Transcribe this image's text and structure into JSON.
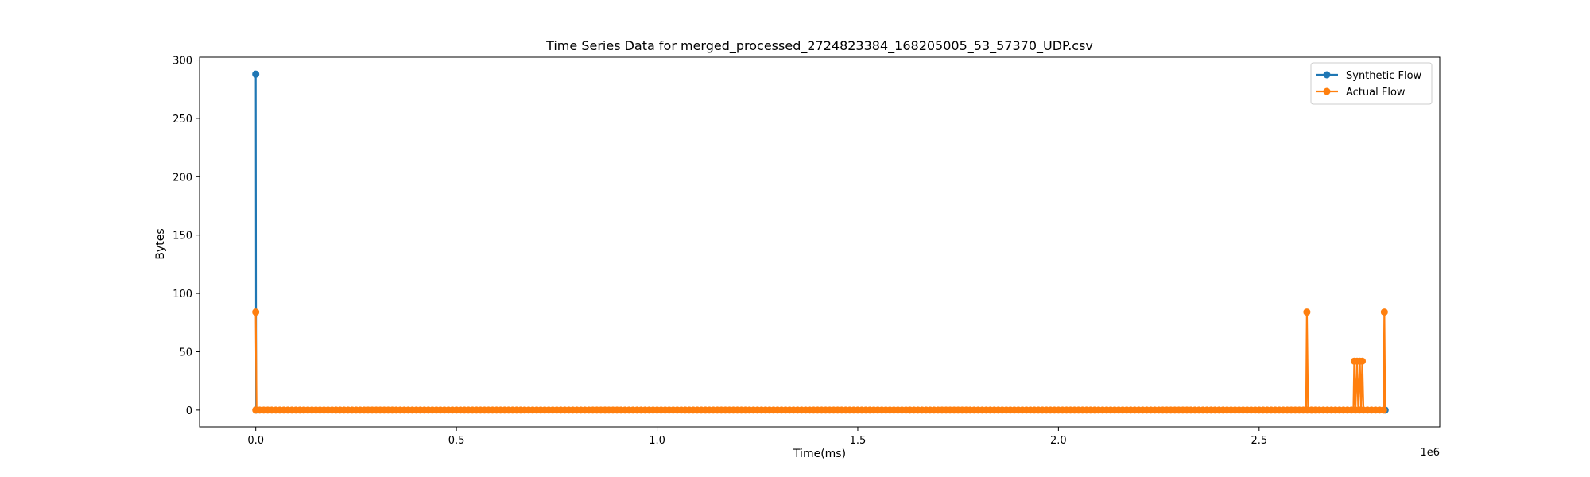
{
  "chart_data": {
    "type": "line",
    "title": "Time Series Data for merged_processed_2724823384_168205005_53_57370_UDP.csv",
    "xlabel": "Time(ms)",
    "ylabel": "Bytes",
    "x_offset_label": "1e6",
    "xlim": [
      -140000,
      2950000
    ],
    "ylim": [
      -14.4,
      302.4
    ],
    "xticks": [
      0,
      500000,
      1000000,
      1500000,
      2000000,
      2500000
    ],
    "xtick_labels": [
      "0.0",
      "0.5",
      "1.0",
      "1.5",
      "2.0",
      "2.5"
    ],
    "yticks": [
      0,
      50,
      100,
      150,
      200,
      250,
      300
    ],
    "ytick_labels": [
      "0",
      "50",
      "100",
      "150",
      "200",
      "250",
      "300"
    ],
    "legend_position": "top-right",
    "grid": false,
    "series": [
      {
        "name": "Synthetic Flow",
        "color": "#1f77b4",
        "marker": "circle",
        "points": [
          [
            0,
            288
          ],
          [
            1000,
            0
          ],
          [
            2814000,
            0
          ]
        ]
      },
      {
        "name": "Actual Flow",
        "color": "#ff7f0e",
        "marker": "circle",
        "points": [
          [
            0,
            84
          ],
          [
            2000,
            0
          ],
          [
            500000,
            0
          ],
          [
            1000000,
            0
          ],
          [
            1500000,
            0
          ],
          [
            2000000,
            0
          ],
          [
            2617000,
            0
          ],
          [
            2619000,
            84
          ],
          [
            2622000,
            0
          ],
          [
            2735000,
            0
          ],
          [
            2737000,
            42
          ],
          [
            2740000,
            0
          ],
          [
            2744000,
            42
          ],
          [
            2747000,
            0
          ],
          [
            2751000,
            42
          ],
          [
            2754000,
            0
          ],
          [
            2757000,
            42
          ],
          [
            2760000,
            0
          ],
          [
            2810000,
            0
          ],
          [
            2812000,
            84
          ],
          [
            2814000,
            0
          ]
        ],
        "zero_marker_spacing": 10000,
        "zero_marker_range": [
          0,
          2814000
        ]
      }
    ]
  }
}
